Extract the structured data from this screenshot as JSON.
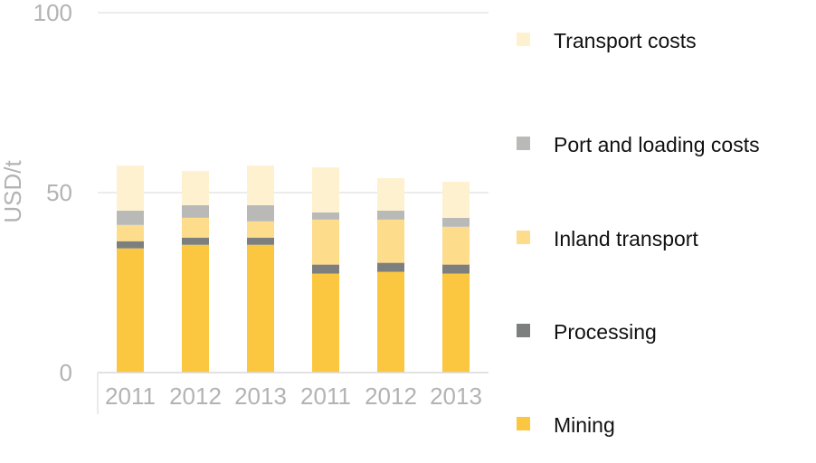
{
  "chart_data": {
    "type": "bar",
    "stacked": true,
    "title": "",
    "xlabel": "",
    "ylabel": "USD/t",
    "ylim": [
      0,
      100
    ],
    "yticks": [
      0,
      50,
      100
    ],
    "grid": true,
    "legend_position": "right",
    "categories": [
      "2011",
      "2012",
      "2013",
      "2011",
      "2012",
      "2013"
    ],
    "series": [
      {
        "name": "Mining",
        "color": "#fcc740",
        "values": [
          34.5,
          35.5,
          35.5,
          27.5,
          28,
          27.5
        ]
      },
      {
        "name": "Processing",
        "color": "#7c7f7e",
        "values": [
          2,
          2,
          2,
          2.5,
          2.5,
          2.5
        ]
      },
      {
        "name": "Inland transport",
        "color": "#fddc8c",
        "values": [
          4.5,
          5.5,
          4.5,
          12.5,
          12,
          10.5
        ]
      },
      {
        "name": "Port and loading costs",
        "color": "#b9bab7",
        "values": [
          4,
          3.5,
          4.5,
          2,
          2.5,
          2.5
        ]
      },
      {
        "name": "Transport costs",
        "color": "#fef1cf",
        "values": [
          12.5,
          9.5,
          11,
          12.5,
          9,
          10
        ]
      }
    ]
  }
}
